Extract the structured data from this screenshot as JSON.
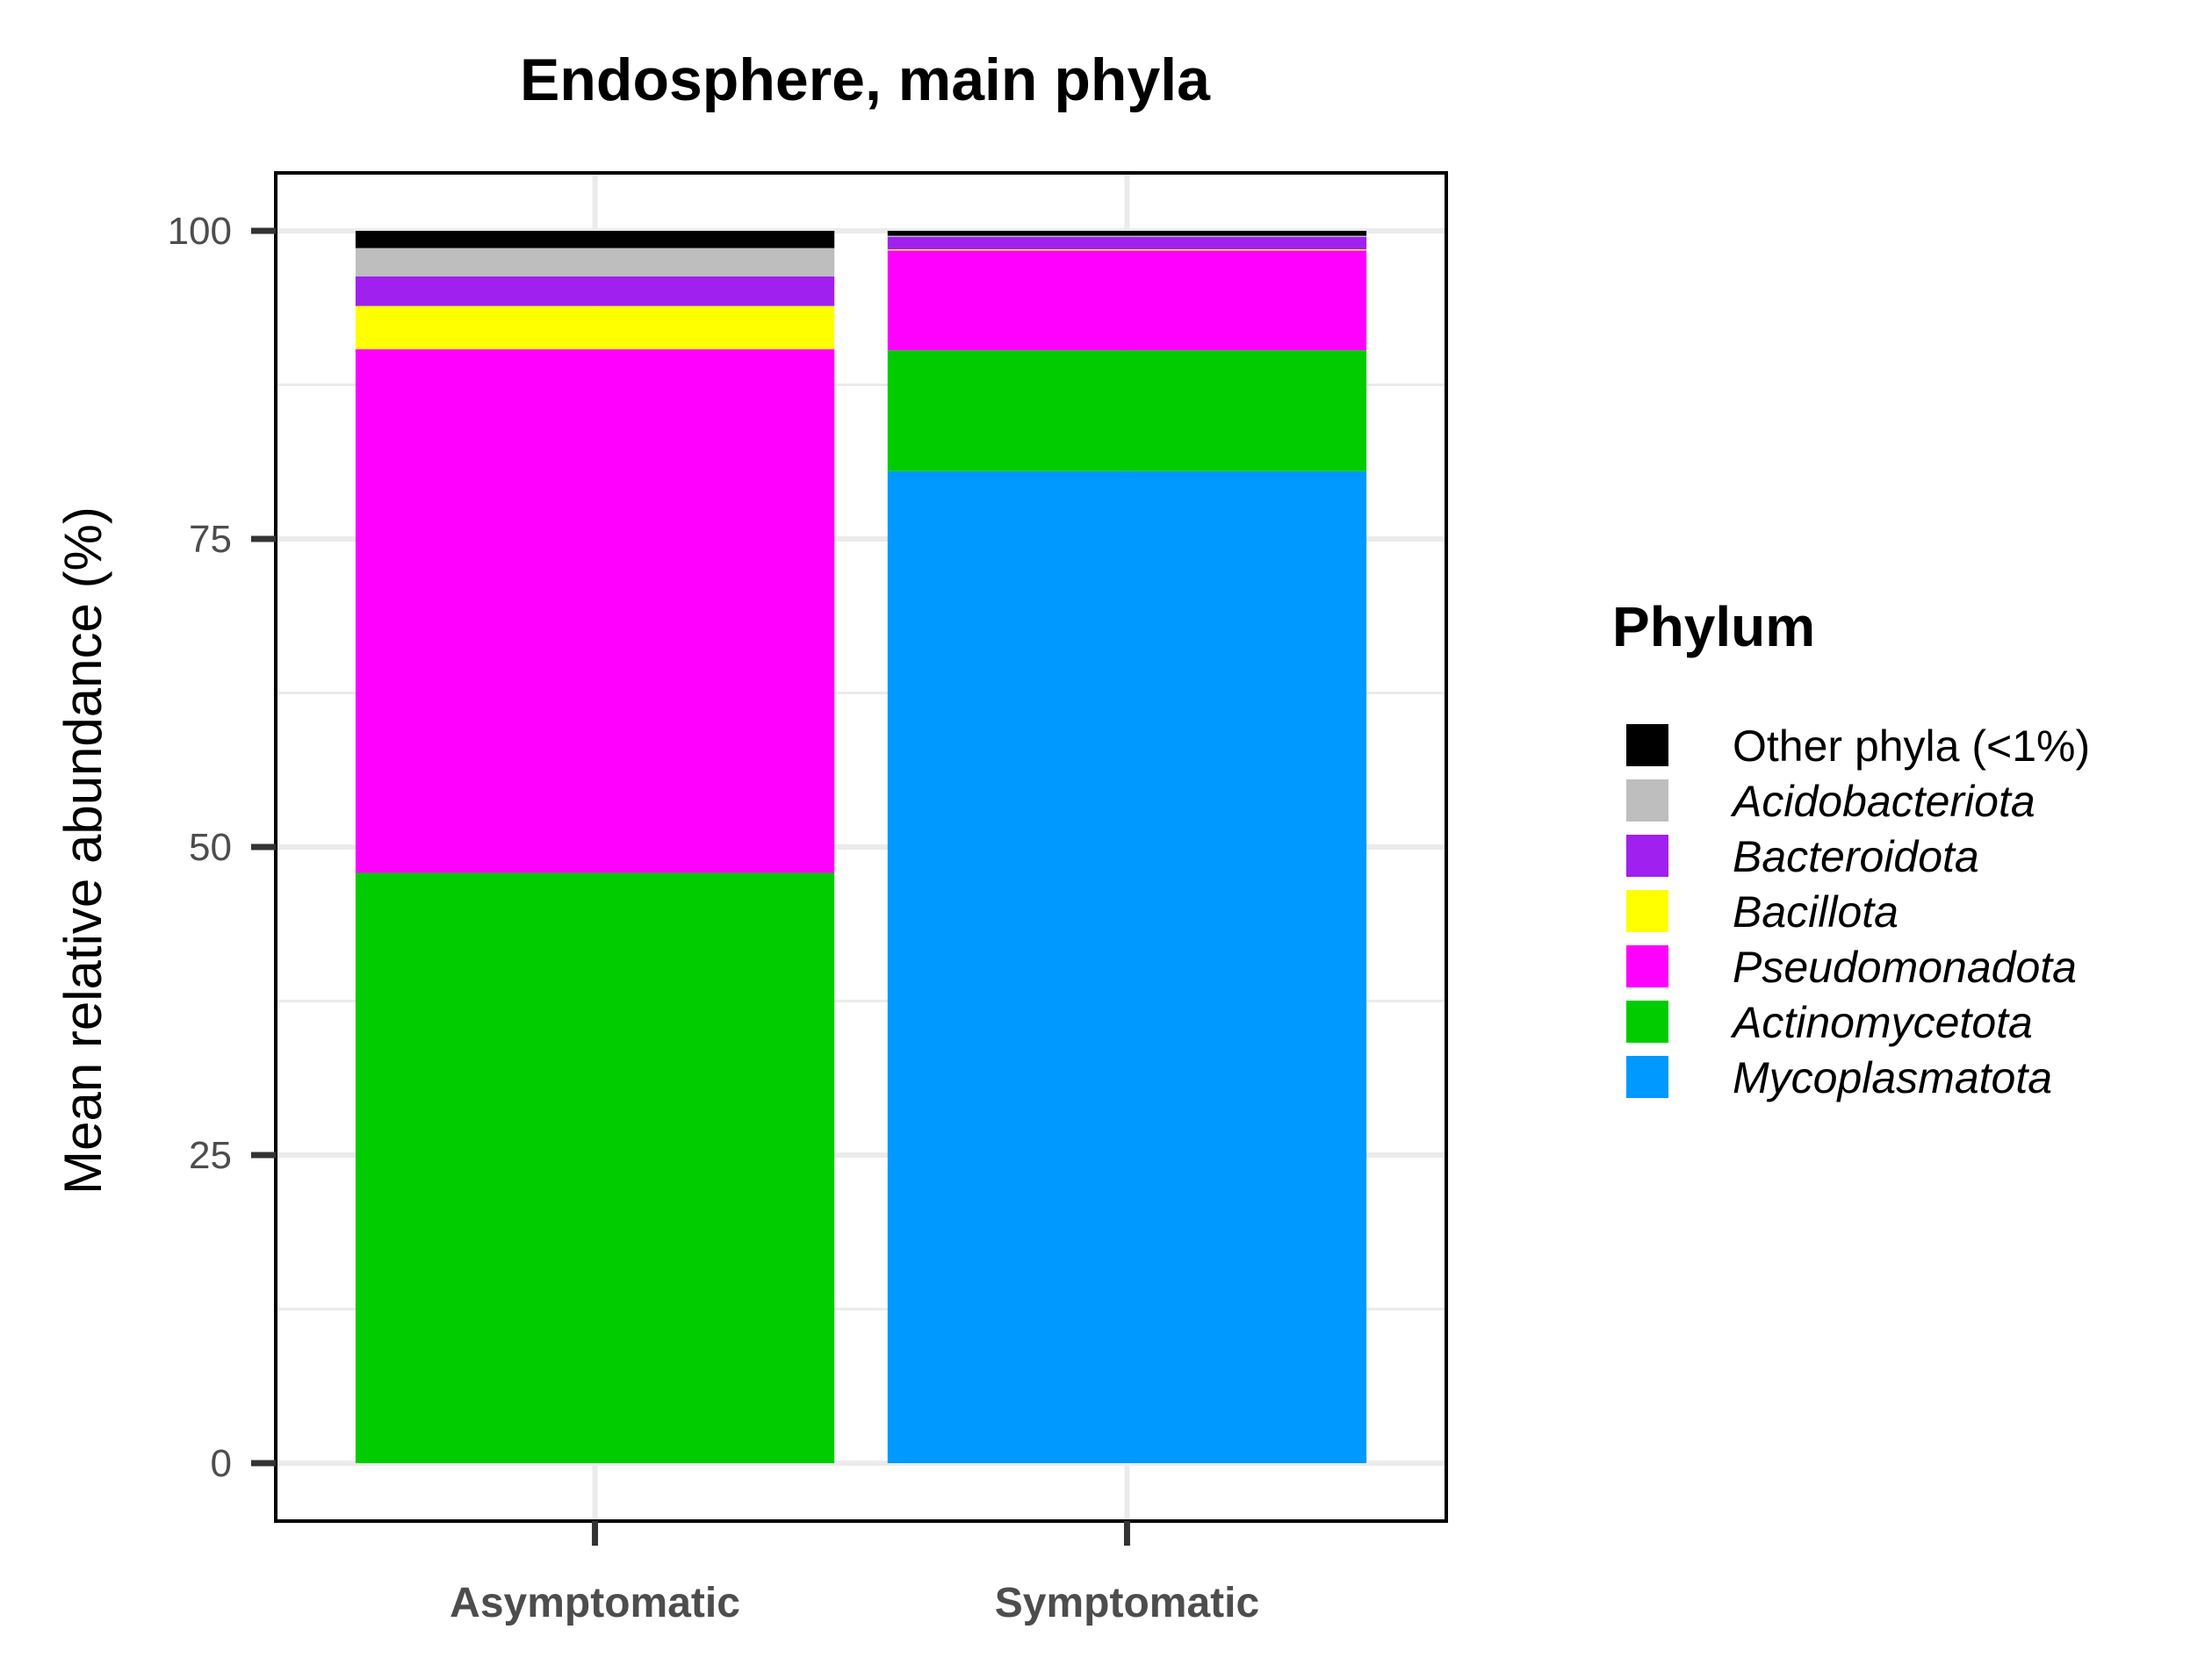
{
  "chart_data": {
    "type": "bar",
    "stacked": true,
    "title": "Endosphere, main phyla",
    "xlabel": "",
    "ylabel": "Mean relative abundance (%)",
    "categories": [
      "Asymptomatic",
      "Symptomatic"
    ],
    "ylim": [
      -4.7,
      104.7
    ],
    "yticks": [
      0,
      25,
      50,
      75,
      100
    ],
    "grid": true,
    "legend": {
      "title": "Phylum",
      "placement": "right"
    },
    "series": [
      {
        "name": "Mycoplasmatota",
        "color": "#0099ff",
        "italic": true,
        "values": [
          0.0,
          80.5
        ]
      },
      {
        "name": "Actinomycetota",
        "color": "#00cc00",
        "italic": true,
        "values": [
          47.9,
          9.8
        ]
      },
      {
        "name": "Pseudomonadota",
        "color": "#ff00ff",
        "italic": true,
        "values": [
          42.5,
          8.1
        ]
      },
      {
        "name": "Bacillota",
        "color": "#ffff00",
        "italic": true,
        "values": [
          3.5,
          0.1
        ]
      },
      {
        "name": "Bacteroidota",
        "color": "#a020f0",
        "italic": true,
        "values": [
          2.4,
          1.0
        ]
      },
      {
        "name": "Acidobacteriota",
        "color": "#bebebe",
        "italic": true,
        "values": [
          2.3,
          0.1
        ]
      },
      {
        "name": "Other phyla (<1%)",
        "color": "#000000",
        "italic": false,
        "values": [
          1.4,
          0.4
        ]
      }
    ],
    "legend_order": [
      "Other phyla (<1%)",
      "Acidobacteriota",
      "Bacteroidota",
      "Bacillota",
      "Pseudomonadota",
      "Actinomycetota",
      "Mycoplasmatota"
    ]
  }
}
